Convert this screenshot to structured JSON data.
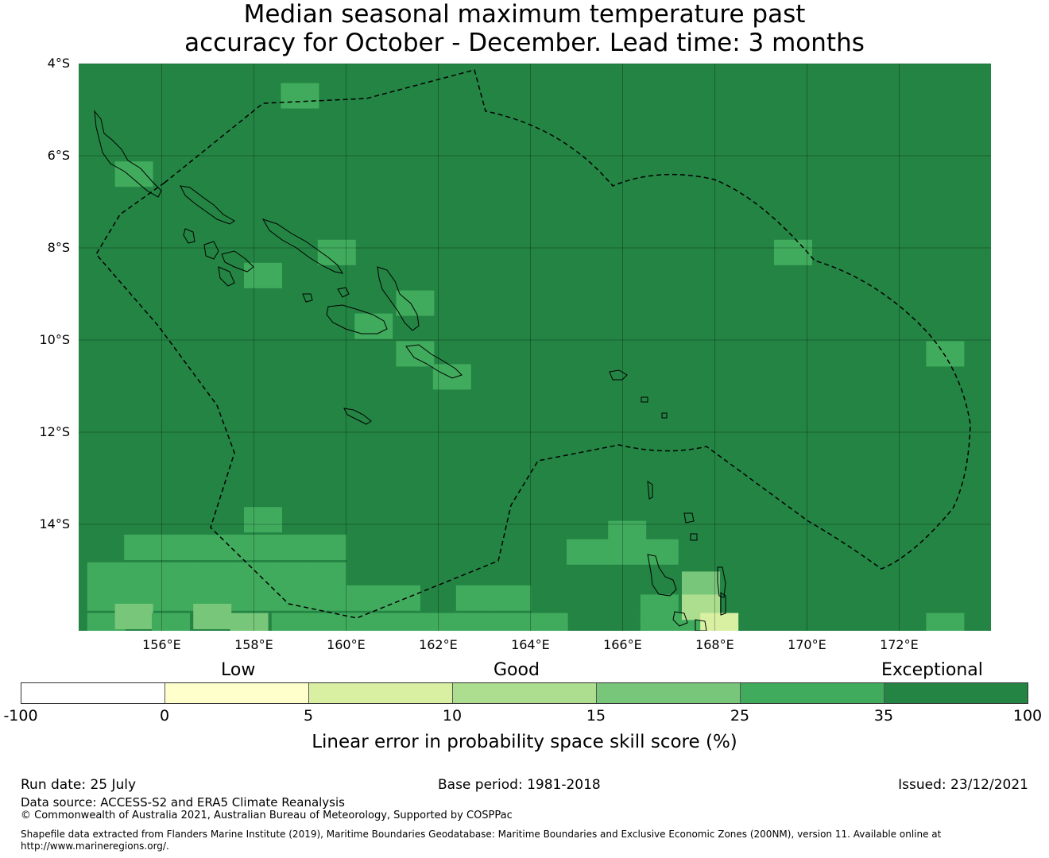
{
  "title": {
    "line1": "Median seasonal maximum temperature past",
    "line2": "accuracy for October - December. Lead time: 3 months"
  },
  "map": {
    "lat_labels": [
      "4°S",
      "6°S",
      "8°S",
      "10°S",
      "12°S",
      "14°S"
    ],
    "lon_labels": [
      "156°E",
      "158°E",
      "160°E",
      "162°E",
      "164°E",
      "166°E",
      "168°E",
      "170°E",
      "172°E"
    ],
    "extent": {
      "lon_min": 154.2,
      "lon_max": 174.0,
      "lat_top": -4.0,
      "lat_bottom": -16.3
    },
    "background_class": "35-100",
    "grid_cells": [
      {
        "lon": 159.0,
        "lat": -4.7,
        "class": "25-35"
      },
      {
        "lon": 155.4,
        "lat": -6.4,
        "class": "25-35"
      },
      {
        "lon": 159.8,
        "lat": -8.1,
        "class": "25-35"
      },
      {
        "lon": 158.2,
        "lat": -8.6,
        "class": "25-35"
      },
      {
        "lon": 161.5,
        "lat": -9.2,
        "class": "25-35"
      },
      {
        "lon": 160.6,
        "lat": -9.7,
        "class": "25-35"
      },
      {
        "lon": 161.5,
        "lat": -10.3,
        "class": "25-35"
      },
      {
        "lon": 162.3,
        "lat": -10.8,
        "class": "25-35"
      },
      {
        "lon": 169.7,
        "lat": -8.1,
        "class": "25-35"
      },
      {
        "lon": 173.0,
        "lat": -10.3,
        "class": "25-35"
      },
      {
        "lon": 173.0,
        "lat": -16.2,
        "class": "25-35"
      },
      {
        "lon": 158.2,
        "lat": -13.9,
        "class": "25-35"
      },
      {
        "lon": 166.1,
        "lat": -14.2,
        "class": "25-35"
      },
      {
        "lon": 167.7,
        "lat": -15.3,
        "class": "15-25"
      },
      {
        "lon": 167.7,
        "lat": -15.8,
        "class": "10-15"
      },
      {
        "lon": 155.4,
        "lat": -16.0,
        "class": "15-25"
      },
      {
        "lon": 157.1,
        "lat": -16.0,
        "class": "15-25"
      },
      {
        "lon": 157.9,
        "lat": -16.2,
        "class": "15-25"
      },
      {
        "lon": 156.2,
        "lat": -16.2,
        "class": "25-35"
      },
      {
        "lon": 168.1,
        "lat": -16.2,
        "class": "5-10"
      }
    ]
  },
  "legend": {
    "categories": [
      "Low",
      "Good",
      "Exceptional"
    ],
    "bins": [
      "-100",
      "0",
      "5",
      "10",
      "15",
      "25",
      "35",
      "100"
    ],
    "colors": [
      "#ffffff",
      "#ffffcc",
      "#d9f0a3",
      "#addd8e",
      "#78c679",
      "#41ab5d",
      "#238443"
    ],
    "label": "Linear error in probability space skill score (%)"
  },
  "footer": {
    "run_date": "Run date: 25 July",
    "base_period": "Base period: 1981-2018",
    "issued": "Issued: 23/12/2021",
    "data_source": "Data source: ACCESS-S2 and ERA5 Climate Reanalysis",
    "copyright": "© Commonwealth of Australia 2021, Australian Bureau of Meteorology, Supported by COSPPac",
    "shapefile_line1": "Shapefile data extracted from Flanders Marine Institute (2019), Maritime Boundaries Geodatabase: Maritime Boundaries and Exclusive Economic Zones (200NM), version 11. Available online at",
    "shapefile_line2": "http://www.marineregions.org/."
  }
}
